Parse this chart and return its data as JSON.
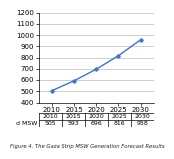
{
  "years": [
    2010,
    2015,
    2020,
    2025,
    2030
  ],
  "values": [
    505,
    593,
    696,
    816,
    958
  ],
  "ylim": [
    400,
    1200
  ],
  "yticks": [
    400,
    500,
    600,
    700,
    800,
    900,
    1000,
    1100,
    1200
  ],
  "xlim": [
    2007,
    2033
  ],
  "line_color": "#4472c4",
  "marker": "o",
  "marker_size": 2.5,
  "line_width": 1.0,
  "caption": "Figure 4. The Gaza Strip MSW Generation Forecast Results",
  "bg_color": "#ffffff",
  "grid_color": "#bbbbbb",
  "table_row_label": "d MSW",
  "table_values": [
    "505",
    "593",
    "696",
    "816",
    "958"
  ],
  "tick_fontsize": 5,
  "caption_fontsize": 3.8,
  "table_fontsize": 4.5
}
